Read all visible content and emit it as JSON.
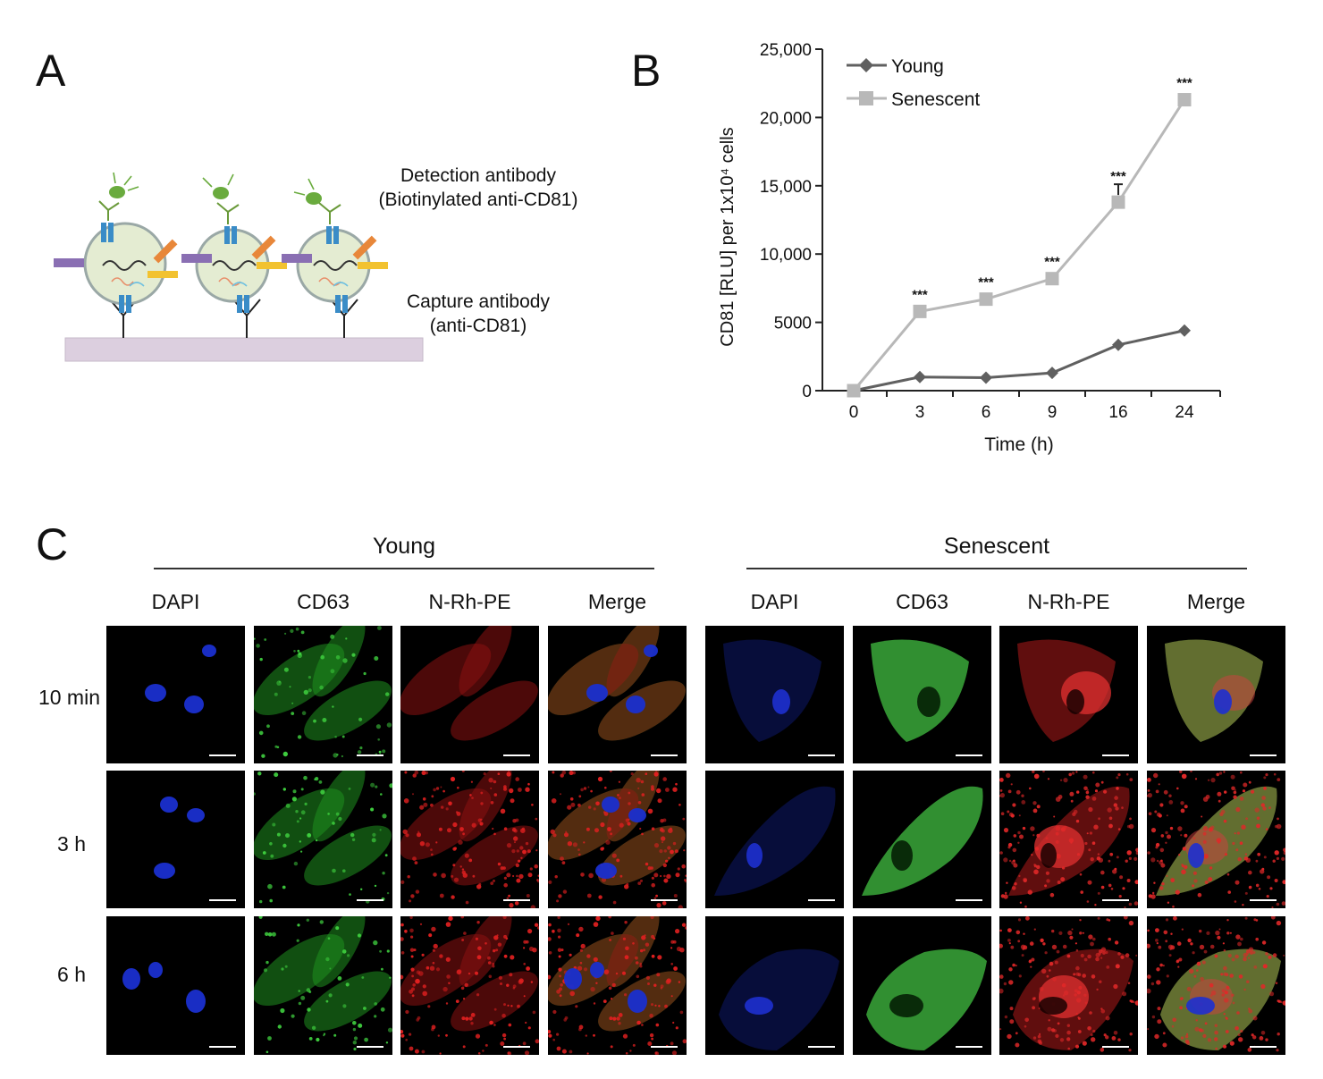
{
  "panel_a": {
    "letter": "A",
    "detection_label": [
      "Detection antibody",
      "(Biotinylated anti-CD81)"
    ],
    "capture_label": [
      "Capture antibody",
      "(anti-CD81)"
    ]
  },
  "panel_b": {
    "letter": "B"
  },
  "chart_data": {
    "type": "line",
    "x": [
      "0",
      "3",
      "6",
      "9",
      "16",
      "24"
    ],
    "series": [
      {
        "name": "Young",
        "values": [
          0,
          1000,
          950,
          1300,
          3350,
          4400
        ],
        "color": "#606060",
        "marker": "diamond"
      },
      {
        "name": "Senescent",
        "values": [
          0,
          5800,
          6700,
          8200,
          13800,
          21300
        ],
        "color": "#b8b8b8",
        "marker": "square"
      }
    ],
    "significance": [
      "",
      "***",
      "***",
      "***",
      "***",
      "***"
    ],
    "xlabel": "Time (h)",
    "ylabel": "CD81 [RLU] per 1x10⁴ cells",
    "yticks": [
      0,
      5000,
      10000,
      15000,
      20000,
      25000
    ],
    "ytick_labels": [
      "0",
      "5000",
      "10,000",
      "15,000",
      "20,000",
      "25,000"
    ],
    "ylim": [
      0,
      25000
    ],
    "legend_position": "top-left"
  },
  "panel_c": {
    "letter": "C",
    "groups": [
      "Young",
      "Senescent"
    ],
    "columns": [
      "DAPI",
      "CD63",
      "N-Rh-PE",
      "Merge"
    ],
    "rows": [
      "10 min",
      "3 h",
      "6 h"
    ]
  }
}
